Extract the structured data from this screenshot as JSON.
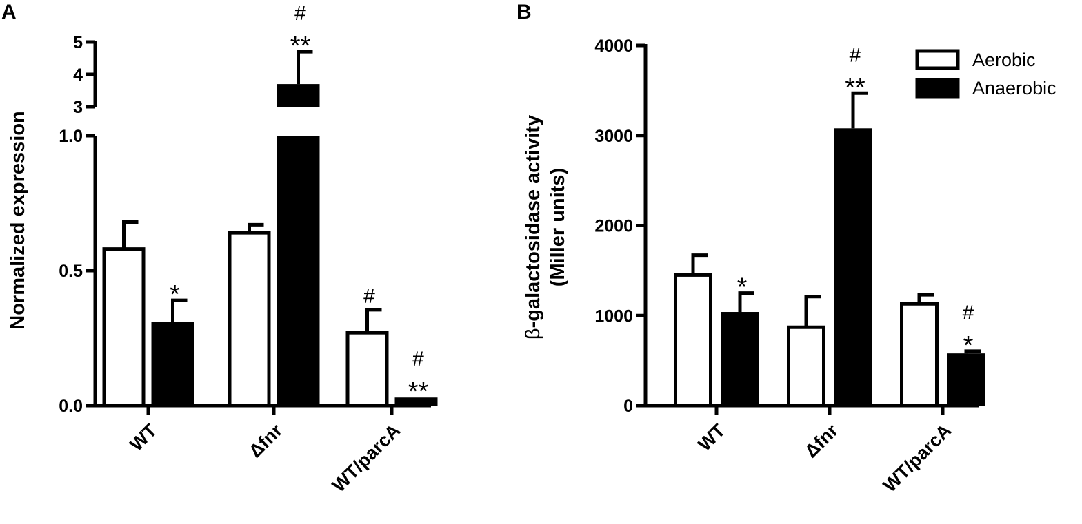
{
  "chart_data": [
    {
      "panel": "A",
      "type": "bar",
      "ylabel": "Normalized expression",
      "categories": [
        "WT",
        "Δfnr",
        "WT/parcA"
      ],
      "y_axis_break": true,
      "lower_ylim": [
        0,
        1.0
      ],
      "lower_ticks": [
        "0.0",
        "0.5",
        "1.0"
      ],
      "upper_ylim": [
        3,
        5
      ],
      "upper_ticks": [
        "3",
        "4",
        "5"
      ],
      "series": [
        {
          "name": "Aerobic",
          "values": [
            0.58,
            0.64,
            0.27
          ],
          "errors": [
            0.1,
            0.03,
            0.085
          ]
        },
        {
          "name": "Anaerobic",
          "values": [
            0.31,
            3.7,
            0.03
          ],
          "errors": [
            0.08,
            1.0,
            0.0
          ]
        }
      ],
      "annotations": [
        {
          "category": 0,
          "series": 1,
          "text": [
            "*"
          ]
        },
        {
          "category": 1,
          "series": 1,
          "text": [
            "#",
            "**"
          ]
        },
        {
          "category": 2,
          "series": 0,
          "text": [
            "#"
          ]
        },
        {
          "category": 2,
          "series": 1,
          "text": [
            "#",
            "**"
          ]
        }
      ]
    },
    {
      "panel": "B",
      "type": "bar",
      "ylabel_prefix": "β",
      "ylabel_main": "-galactosidase activity",
      "ylabel_line2": "(Miller units)",
      "categories": [
        "WT",
        "Δfnr",
        "WT/parcA"
      ],
      "ylim": [
        0,
        4000
      ],
      "yticks": [
        "0",
        "1000",
        "2000",
        "3000",
        "4000"
      ],
      "legend_position": "top-right",
      "series": [
        {
          "name": "Aerobic",
          "values": [
            1450,
            870,
            1130
          ],
          "errors": [
            220,
            340,
            100
          ]
        },
        {
          "name": "Anaerobic",
          "values": [
            1040,
            3080,
            580
          ],
          "errors": [
            210,
            390,
            25
          ]
        }
      ],
      "annotations": [
        {
          "category": 0,
          "series": 1,
          "text": [
            "*"
          ]
        },
        {
          "category": 1,
          "series": 1,
          "text": [
            "#",
            "**"
          ]
        },
        {
          "category": 2,
          "series": 1,
          "text": [
            "#",
            "*"
          ]
        }
      ]
    }
  ]
}
